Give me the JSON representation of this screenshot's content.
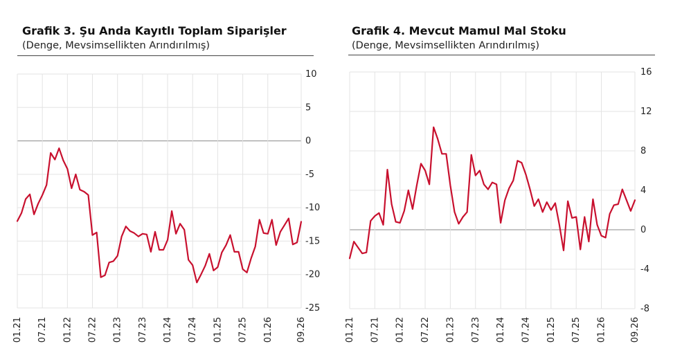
{
  "charts": [
    {
      "title": "Grafik 3. Şu Anda Kayıtlı Toplam Siparişler",
      "subtitle": "(Denge, Mevsimsellikten Arındırılmış)"
    },
    {
      "title": "Grafik 4. Mevcut Mamul Mal Stoku",
      "subtitle": " (Denge, Mevsimsellikten Arındırılmış)"
    }
  ],
  "chart_data": [
    {
      "type": "line",
      "series_color": "#c8102e",
      "grid": true,
      "ylim": [
        -25,
        10
      ],
      "y_ticks": [
        10,
        5,
        0,
        -5,
        -10,
        -15,
        -20,
        -25
      ],
      "x_tick_labels": [
        "01.21",
        "07.21",
        "01.22",
        "07.22",
        "01.23",
        "07.23",
        "01.24",
        "07.24",
        "01.25",
        "07.25",
        "01.26",
        "09.26"
      ],
      "x_tick_positions": [
        0,
        6,
        12,
        18,
        24,
        30,
        36,
        42,
        48,
        54,
        60,
        68
      ],
      "values": [
        -12.0,
        -10.8,
        -8.7,
        -8.0,
        -11.0,
        -9.4,
        -8.1,
        -6.6,
        -1.8,
        -2.8,
        -1.1,
        -2.9,
        -4.2,
        -7.1,
        -5.0,
        -7.3,
        -7.6,
        -8.1,
        -14.1,
        -13.7,
        -20.4,
        -20.1,
        -18.2,
        -18.0,
        -17.2,
        -14.3,
        -12.8,
        -13.5,
        -13.8,
        -14.3,
        -13.9,
        -14.0,
        -16.6,
        -13.6,
        -16.3,
        -16.3,
        -14.8,
        -10.5,
        -13.9,
        -12.4,
        -13.3,
        -17.8,
        -18.6,
        -21.2,
        -20.0,
        -18.7,
        -16.9,
        -19.4,
        -18.9,
        -16.7,
        -15.6,
        -14.1,
        -16.6,
        -16.6,
        -19.2,
        -19.7,
        -17.6,
        -15.8,
        -11.8,
        -13.8,
        -13.9,
        -11.8,
        -15.6,
        -13.6,
        -12.6,
        -11.6,
        -15.5,
        -15.2,
        -12.1
      ]
    },
    {
      "type": "line",
      "series_color": "#c8102e",
      "grid": true,
      "ylim": [
        -8,
        16
      ],
      "y_ticks": [
        16,
        12,
        8,
        4,
        0,
        -4,
        -8
      ],
      "x_tick_labels": [
        "01.21",
        "07.21",
        "01.22",
        "07.22",
        "01.23",
        "07.23",
        "01.24",
        "07.24",
        "01.25",
        "07.25",
        "01.26",
        "09.26"
      ],
      "x_tick_positions": [
        0,
        6,
        12,
        18,
        24,
        30,
        36,
        42,
        48,
        54,
        60,
        68
      ],
      "values": [
        -2.9,
        -1.2,
        -1.8,
        -2.4,
        -2.3,
        0.9,
        1.4,
        1.7,
        0.5,
        6.1,
        2.6,
        0.8,
        0.7,
        1.9,
        4.0,
        2.1,
        4.5,
        6.7,
        6.0,
        4.6,
        10.4,
        9.2,
        7.7,
        7.7,
        4.5,
        1.8,
        0.6,
        1.3,
        1.8,
        7.6,
        5.5,
        6.0,
        4.6,
        4.1,
        4.8,
        4.6,
        0.7,
        3.0,
        4.2,
        5.0,
        7.0,
        6.8,
        5.6,
        4.1,
        2.4,
        3.1,
        1.8,
        2.8,
        2.0,
        2.7,
        0.5,
        -2.1,
        2.9,
        1.2,
        1.3,
        -2.0,
        1.3,
        -1.2,
        3.1,
        0.5,
        -0.6,
        -0.8,
        1.6,
        2.5,
        2.6,
        4.1,
        3.0,
        1.9,
        3.0
      ]
    }
  ]
}
